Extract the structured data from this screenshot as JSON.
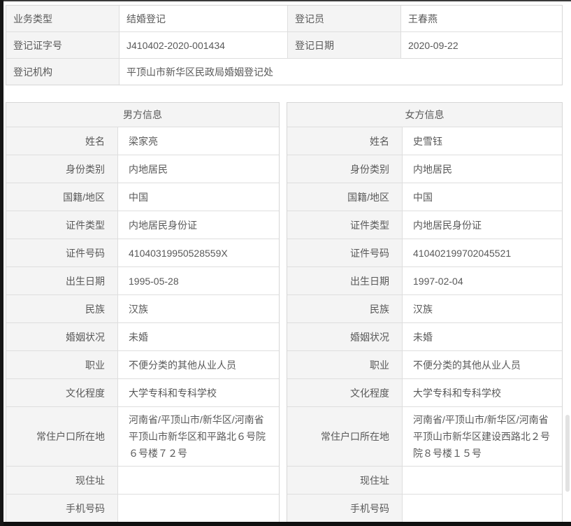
{
  "colors": {
    "label_cell_bg": "#f4f4f4",
    "table_border": "#d6d6d6",
    "text": "#595959",
    "window_frame": "#161616"
  },
  "summary_table": {
    "business_type": {
      "label": "业务类型",
      "value": "结婚登记"
    },
    "registrar": {
      "label": "登记员",
      "value": "王春燕"
    },
    "certificate_no": {
      "label": "登记证字号",
      "value": "J410402-2020-001434"
    },
    "registration_date": {
      "label": "登记日期",
      "value": "2020-09-22"
    },
    "registration_office": {
      "label": "登记机构",
      "value": "平顶山市新华区民政局婚姻登记处"
    }
  },
  "field_labels": [
    "姓名",
    "身份类别",
    "国籍/地区",
    "证件类型",
    "证件号码",
    "出生日期",
    "民族",
    "婚姻状况",
    "职业",
    "文化程度",
    "常住户口所在地",
    "现住址",
    "手机号码"
  ],
  "male": {
    "title": "男方信息",
    "values": [
      "梁家亮",
      "内地居民",
      "中国",
      "内地居民身份证",
      "41040319950528559X",
      "1995-05-28",
      "汉族",
      "未婚",
      "不便分类的其他从业人员",
      "大学专科和专科学校",
      "河南省/平顶山市/新华区/河南省平顶山市新华区和平路北６号院６号楼７２号",
      "",
      ""
    ]
  },
  "female": {
    "title": "女方信息",
    "values": [
      "史雪钰",
      "内地居民",
      "中国",
      "内地居民身份证",
      "410402199702045521",
      "1997-02-04",
      "汉族",
      "未婚",
      "不便分类的其他从业人员",
      "大学专科和专科学校",
      "河南省/平顶山市/新华区/河南省平顶山市新华区建设西路北２号院８号楼１５号",
      "",
      ""
    ]
  }
}
